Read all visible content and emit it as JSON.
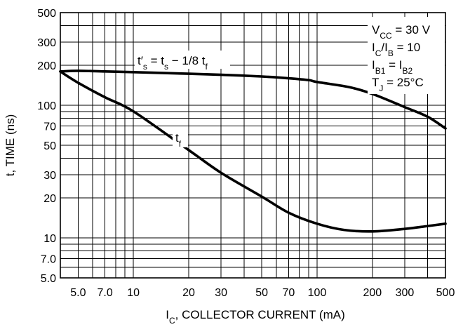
{
  "chart_data": {
    "type": "line",
    "xscale": "log",
    "yscale": "log",
    "xlim": [
      4,
      500
    ],
    "ylim": [
      5,
      500
    ],
    "xlabel": "I_C, COLLECTOR CURRENT (mA)",
    "ylabel": "t, TIME (ns)",
    "xticks": [
      {
        "value": 5,
        "label": "5.0"
      },
      {
        "value": 7,
        "label": "7.0"
      },
      {
        "value": 10,
        "label": "10"
      },
      {
        "value": 20,
        "label": "20"
      },
      {
        "value": 30,
        "label": "30"
      },
      {
        "value": 50,
        "label": "50"
      },
      {
        "value": 70,
        "label": "70"
      },
      {
        "value": 100,
        "label": "100"
      },
      {
        "value": 200,
        "label": "200"
      },
      {
        "value": 300,
        "label": "300"
      },
      {
        "value": 500,
        "label": "500"
      }
    ],
    "yticks": [
      {
        "value": 5,
        "label": "5.0"
      },
      {
        "value": 7,
        "label": "7.0"
      },
      {
        "value": 10,
        "label": "10"
      },
      {
        "value": 20,
        "label": "20"
      },
      {
        "value": 30,
        "label": "30"
      },
      {
        "value": 50,
        "label": "50"
      },
      {
        "value": 70,
        "label": "70"
      },
      {
        "value": 100,
        "label": "100"
      },
      {
        "value": 200,
        "label": "200"
      },
      {
        "value": 300,
        "label": "300"
      },
      {
        "value": 500,
        "label": "500"
      }
    ],
    "grid": true,
    "conditions": [
      "V_CC = 30 V",
      "I_C/I_B = 10",
      "I_B1 = I_B2",
      "T_J = 25°C"
    ],
    "series": [
      {
        "name": "t'_s = t_s − 1/8 t_f",
        "x": [
          4,
          5,
          7,
          10,
          20,
          30,
          50,
          70,
          90,
          100,
          150,
          200,
          300,
          400,
          500
        ],
        "y": [
          180,
          182,
          180,
          178,
          173,
          170,
          165,
          160,
          155,
          150,
          137,
          122,
          97,
          82,
          67
        ]
      },
      {
        "name": "t_f",
        "x": [
          4,
          5,
          7,
          10,
          20,
          30,
          50,
          70,
          100,
          140,
          200,
          300,
          400,
          500
        ],
        "y": [
          180,
          148,
          115,
          90,
          46,
          31,
          20.5,
          15.5,
          12.8,
          11.5,
          11.2,
          11.7,
          12.3,
          12.8
        ]
      }
    ]
  }
}
